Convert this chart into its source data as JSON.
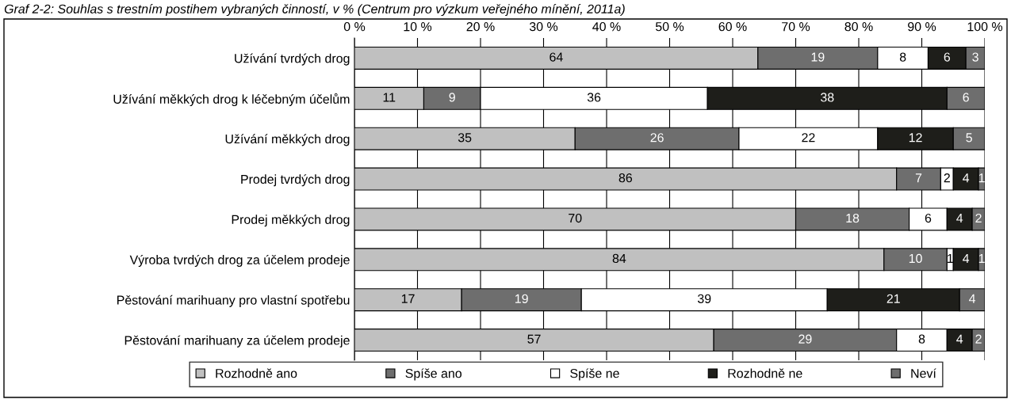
{
  "chart_data": {
    "type": "bar",
    "orientation": "horizontal",
    "stacked": true,
    "title": "Graf 2-2: Souhlas s trestním postihem vybraných činností, v % (Centrum pro výzkum veřejného mínění, 2011a)",
    "categories": [
      "Užívání tvrdých drog",
      "Užívání měkkých drog k léčebným účelům",
      "Užívání měkkých drog",
      "Prodej tvrdých drog",
      "Prodej měkkých drog",
      "Výroba tvrdých drog za účelem prodeje",
      "Pěstování marihuany pro vlastní spotřebu",
      "Pěstování marihuany za účelem prodeje"
    ],
    "series": [
      {
        "name": "Rozhodně ano",
        "color": "#c0c0c0",
        "values": [
          64,
          11,
          35,
          86,
          70,
          84,
          17,
          57
        ]
      },
      {
        "name": "Spíše ano",
        "color": "#6e6e6e",
        "values": [
          19,
          9,
          26,
          7,
          18,
          10,
          19,
          29
        ]
      },
      {
        "name": "Spíše ne",
        "color": "#ffffff",
        "values": [
          8,
          36,
          22,
          2,
          6,
          1,
          39,
          8
        ]
      },
      {
        "name": "Rozhodně ne",
        "color": "#1e1e1a",
        "values": [
          6,
          38,
          12,
          4,
          4,
          4,
          21,
          4
        ]
      },
      {
        "name": "Neví",
        "color": "#6e6e6e",
        "values": [
          3,
          6,
          5,
          1,
          2,
          1,
          4,
          2
        ]
      }
    ],
    "xlim": [
      0,
      100
    ],
    "xticks": [
      {
        "value": 0,
        "label": "0 %"
      },
      {
        "value": 10,
        "label": "10 %"
      },
      {
        "value": 20,
        "label": "20 %"
      },
      {
        "value": 30,
        "label": "30 %"
      },
      {
        "value": 40,
        "label": "40 %"
      },
      {
        "value": 50,
        "label": "50 %"
      },
      {
        "value": 60,
        "label": "60 %"
      },
      {
        "value": 70,
        "label": "70 %"
      },
      {
        "value": 80,
        "label": "80 %"
      },
      {
        "value": 90,
        "label": "90 %"
      },
      {
        "value": 100,
        "label": "100 %"
      }
    ],
    "grid": "x",
    "legend": "bottom",
    "data_labels": true
  }
}
